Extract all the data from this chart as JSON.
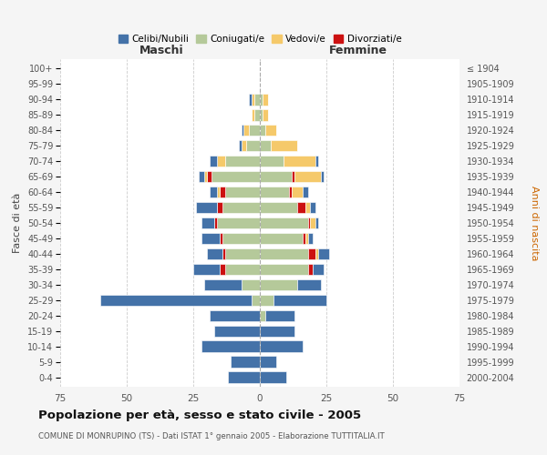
{
  "age_groups": [
    "0-4",
    "5-9",
    "10-14",
    "15-19",
    "20-24",
    "25-29",
    "30-34",
    "35-39",
    "40-44",
    "45-49",
    "50-54",
    "55-59",
    "60-64",
    "65-69",
    "70-74",
    "75-79",
    "80-84",
    "85-89",
    "90-94",
    "95-99",
    "100+"
  ],
  "birth_years": [
    "2000-2004",
    "1995-1999",
    "1990-1994",
    "1985-1989",
    "1980-1984",
    "1975-1979",
    "1970-1974",
    "1965-1969",
    "1960-1964",
    "1955-1959",
    "1950-1954",
    "1945-1949",
    "1940-1944",
    "1935-1939",
    "1930-1934",
    "1925-1929",
    "1920-1924",
    "1915-1919",
    "1910-1914",
    "1905-1909",
    "≤ 1904"
  ],
  "males": {
    "celibe": [
      12,
      11,
      22,
      17,
      19,
      57,
      14,
      10,
      6,
      7,
      5,
      8,
      3,
      2,
      3,
      1,
      1,
      0,
      1,
      0,
      0
    ],
    "coniugato": [
      0,
      0,
      0,
      0,
      0,
      3,
      7,
      13,
      13,
      14,
      16,
      14,
      13,
      18,
      13,
      5,
      4,
      2,
      2,
      0,
      0
    ],
    "vedovo": [
      0,
      0,
      0,
      0,
      0,
      0,
      0,
      0,
      0,
      0,
      0,
      0,
      1,
      1,
      3,
      2,
      2,
      1,
      1,
      0,
      0
    ],
    "divorziato": [
      0,
      0,
      0,
      0,
      0,
      0,
      0,
      2,
      1,
      1,
      1,
      2,
      2,
      2,
      0,
      0,
      0,
      0,
      0,
      0,
      0
    ]
  },
  "females": {
    "nubile": [
      10,
      6,
      16,
      13,
      11,
      20,
      9,
      4,
      4,
      2,
      1,
      2,
      2,
      1,
      1,
      0,
      0,
      0,
      0,
      0,
      0
    ],
    "coniugata": [
      0,
      0,
      0,
      0,
      2,
      5,
      14,
      18,
      18,
      16,
      18,
      14,
      11,
      12,
      9,
      4,
      2,
      1,
      1,
      0,
      0
    ],
    "vedova": [
      0,
      0,
      0,
      0,
      0,
      0,
      0,
      0,
      1,
      1,
      2,
      2,
      4,
      10,
      12,
      10,
      4,
      2,
      2,
      0,
      0
    ],
    "divorziata": [
      0,
      0,
      0,
      0,
      0,
      0,
      0,
      2,
      3,
      1,
      1,
      3,
      1,
      1,
      0,
      0,
      0,
      0,
      0,
      0,
      0
    ]
  },
  "colors": {
    "celibe": "#4472A8",
    "coniugato": "#B5C99A",
    "vedovo": "#F5C96A",
    "divorziato": "#CC1111"
  },
  "legend_labels": [
    "Celibi/Nubili",
    "Coniugati/e",
    "Vedovi/e",
    "Divorziati/e"
  ],
  "legend_colors": [
    "#4472A8",
    "#B5C99A",
    "#F5C96A",
    "#CC1111"
  ],
  "title": "Popolazione per età, sesso e stato civile - 2005",
  "subtitle": "COMUNE DI MONRUPINO (TS) - Dati ISTAT 1° gennaio 2005 - Elaborazione TUTTITALIA.IT",
  "xlabel_left": "Maschi",
  "xlabel_right": "Femmine",
  "ylabel_left": "Fasce di età",
  "ylabel_right": "Anni di nascita",
  "xlim": 75,
  "background_color": "#f5f5f5",
  "plot_background": "#ffffff",
  "grid_color": "#cccccc"
}
